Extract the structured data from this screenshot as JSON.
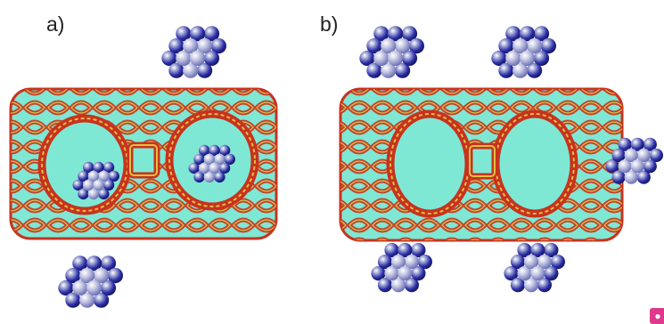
{
  "panels": [
    {
      "label": "a)"
    },
    {
      "label": "b)"
    }
  ],
  "colors": {
    "framework_fill": "#7fe8d4",
    "framework_ring": "#c8321e",
    "framework_edge": "#e0c040",
    "cluster_atom_dark": "#2c2fa8",
    "cluster_atom_light": "#a6acd6",
    "badge": "#e0388c"
  },
  "icons": {
    "framework": "zeolite-framework",
    "cluster": "metal-nanoparticle-cluster"
  }
}
